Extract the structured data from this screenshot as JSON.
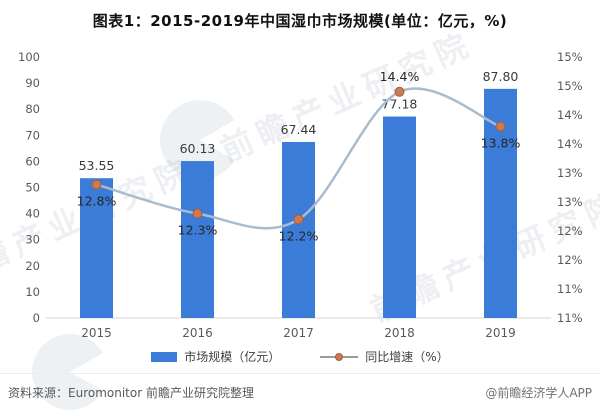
{
  "title": "图表1：2015-2019年中国湿巾市场规模(单位：亿元，%)",
  "chart_data": {
    "type": "bar+line",
    "categories": [
      "2015",
      "2016",
      "2017",
      "2018",
      "2019"
    ],
    "series": [
      {
        "name": "市场规模（亿元）",
        "type": "bar",
        "axis": "left",
        "color": "#3B7CD8",
        "values": [
          53.55,
          60.13,
          67.44,
          77.18,
          87.8
        ],
        "labels": [
          "53.55",
          "60.13",
          "67.44",
          "77.18",
          "87.80"
        ]
      },
      {
        "name": "同比增速（%）",
        "type": "line",
        "axis": "right",
        "color": "#A8BCCE",
        "marker_color": "#C97B52",
        "marker_stroke": "#A85C36",
        "values": [
          12.8,
          12.3,
          12.2,
          14.4,
          13.8
        ],
        "labels": [
          "12.8%",
          "12.3%",
          "12.2%",
          "14.4%",
          "13.8%"
        ],
        "label_positions": [
          "below",
          "below",
          "below",
          "above",
          "below"
        ]
      }
    ],
    "left_axis": {
      "min": 0,
      "max": 100,
      "step": 10
    },
    "right_axis": {
      "min": 10.5,
      "max": 15,
      "step": 0.5,
      "format": "round_percent"
    },
    "grid": false,
    "legend_position": "bottom"
  },
  "footer": {
    "source": "资料来源：Euromonitor 前瞻产业研究院整理",
    "credit": "@前瞻经济学人APP"
  },
  "watermark": {
    "text": "前瞻产业研究院"
  }
}
